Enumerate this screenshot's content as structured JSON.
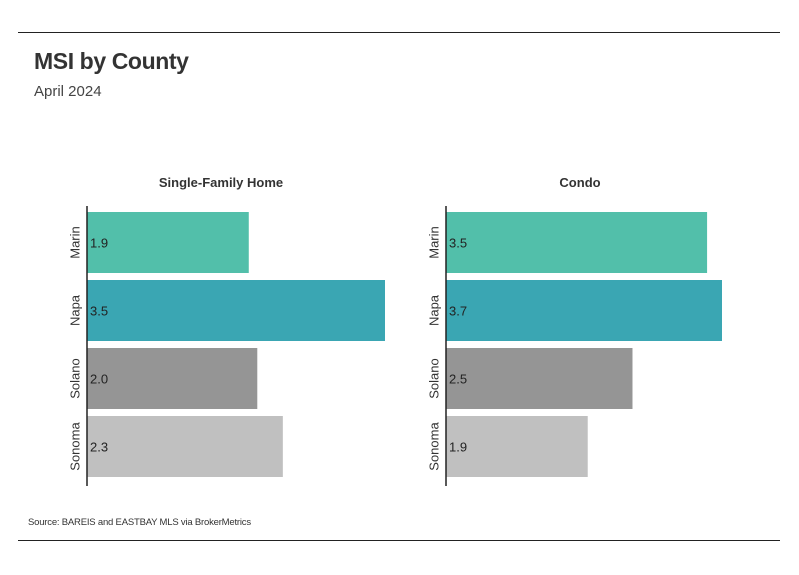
{
  "title": "MSI by County",
  "subtitle": "April 2024",
  "source": "Source:  BAREIS and EASTBAY MLS via BrokerMetrics",
  "colors": {
    "Marin": "#52bfaa",
    "Napa": "#3aa6b3",
    "Solano": "#959595",
    "Sonoma": "#c0c0c0",
    "axis": "#222222"
  },
  "chart_data": [
    {
      "type": "bar",
      "orientation": "horizontal",
      "title": "Single-Family Home",
      "categories": [
        "Marin",
        "Napa",
        "Solano",
        "Sonoma"
      ],
      "values": [
        1.9,
        3.5,
        2.0,
        2.3
      ],
      "value_labels": [
        "1.9",
        "3.5",
        "2.0",
        "2.3"
      ],
      "xlim": [
        0,
        3.5
      ],
      "grid": false
    },
    {
      "type": "bar",
      "orientation": "horizontal",
      "title": "Condo",
      "categories": [
        "Marin",
        "Napa",
        "Solano",
        "Sonoma"
      ],
      "values": [
        3.5,
        3.7,
        2.5,
        1.9
      ],
      "value_labels": [
        "3.5",
        "3.7",
        "2.5",
        "1.9"
      ],
      "xlim": [
        0,
        3.7
      ],
      "grid": false
    }
  ]
}
